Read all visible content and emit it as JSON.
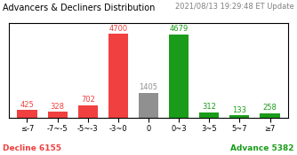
{
  "chart_data": {
    "type": "bar",
    "title": "Advancers & Decliners Distribution",
    "subtitle": "2021/08/13 19:29:48 ET Update",
    "categories": [
      "≤-7",
      "-7~-5",
      "-5~-3",
      "-3~0",
      "0",
      "0~3",
      "3~5",
      "5~7",
      "≥7"
    ],
    "values": [
      425,
      328,
      702,
      4700,
      1405,
      4679,
      312,
      133,
      258
    ],
    "colors": [
      "#f04040",
      "#f04040",
      "#f04040",
      "#f04040",
      "#909090",
      "#1a9c1a",
      "#1a9c1a",
      "#1a9c1a",
      "#1a9c1a"
    ],
    "ylim": [
      0,
      5300
    ],
    "data_labels": true,
    "tick_labels": "x",
    "annotations": [
      {
        "text": "Decline 6155",
        "color": "#f04040"
      },
      {
        "text": "Advance 5382",
        "color": "#1a9c1a"
      }
    ]
  }
}
